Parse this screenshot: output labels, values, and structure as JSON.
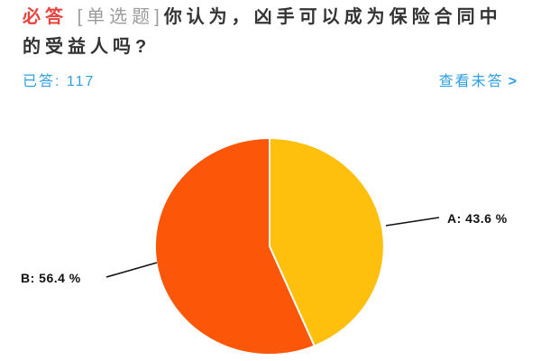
{
  "question": {
    "required_badge": "必答",
    "type_badge": "[单选题]",
    "text": "你认为，凶手可以成为保险合同中的受益人吗?",
    "answered_label": "已答:",
    "answered_count": "117",
    "view_unanswered_label": "查看未答",
    "chevron": ">"
  },
  "chart_data": {
    "type": "pie",
    "title": "",
    "labels": [
      "A",
      "B"
    ],
    "values": [
      43.6,
      56.4
    ],
    "unit": "%",
    "value_labels": [
      "A: 43.6 %",
      "B: 56.4 %"
    ],
    "colors": [
      "#FFC00D",
      "#FC5708"
    ],
    "start_angle_deg": 90,
    "direction": "clockwise",
    "divider_color": "#FFFFFF",
    "leader_line_color": "#111111",
    "label_color": "#111111",
    "legend_position": "none"
  },
  "ui_colors": {
    "required_red": "#E8433E",
    "type_gray": "#9B9B9B",
    "title_dark": "#333333",
    "link_blue": "#2E9FE2",
    "background": "#FFFFFF"
  }
}
